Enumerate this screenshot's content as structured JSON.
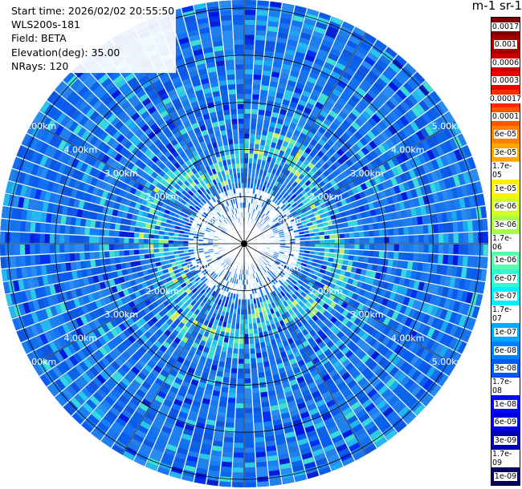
{
  "header": {
    "start_time": "Start time: 2026/02/02 20:55:50",
    "instrument": "WLS200s-181",
    "field": "Field: BETA",
    "elevation": "Elevation(deg): 35.00",
    "nrays": "NRays: 120"
  },
  "ppi": {
    "nrays": 120,
    "range_labels": [
      "1.00km",
      "2.00km",
      "3.00km",
      "4.00km",
      "5.00km"
    ]
  },
  "colorbar": {
    "title": "m-1 sr-1",
    "levels": [
      {
        "label": "0.0017",
        "color": "#7f0000"
      },
      {
        "label": "0.001",
        "color": "#a50000"
      },
      {
        "label": "0.0006",
        "color": "#cc0000"
      },
      {
        "label": "0.0003",
        "color": "#f20000"
      },
      {
        "label": "0.00017",
        "color": "#ff2a00"
      },
      {
        "label": "0.0001",
        "color": "#ff5500"
      },
      {
        "label": "6e-05",
        "color": "#ff8000"
      },
      {
        "label": "3e-05",
        "color": "#ffa500"
      },
      {
        "label": "1.7e-05",
        "color": "#ffcc00"
      },
      {
        "label": "1e-05",
        "color": "#fff000"
      },
      {
        "label": "6e-06",
        "color": "#d4ff22"
      },
      {
        "label": "3e-06",
        "color": "#aaff44"
      },
      {
        "label": "1.7e-06",
        "color": "#80ff80"
      },
      {
        "label": "1e-06",
        "color": "#55ffaa"
      },
      {
        "label": "6e-07",
        "color": "#2affd4"
      },
      {
        "label": "3e-07",
        "color": "#00f0ff"
      },
      {
        "label": "1.7e-07",
        "color": "#00ccff"
      },
      {
        "label": "1e-07",
        "color": "#00a8ff"
      },
      {
        "label": "6e-08",
        "color": "#0080ff"
      },
      {
        "label": "3e-08",
        "color": "#0058ff"
      },
      {
        "label": "1.7e-08",
        "color": "#0030ff"
      },
      {
        "label": "1e-08",
        "color": "#0008ff"
      },
      {
        "label": "6e-09",
        "color": "#0000e0"
      },
      {
        "label": "3e-09",
        "color": "#0000b5"
      },
      {
        "label": "1.7e-09",
        "color": "#00008a"
      },
      {
        "label": "1e-09",
        "color": "#000060"
      }
    ]
  }
}
